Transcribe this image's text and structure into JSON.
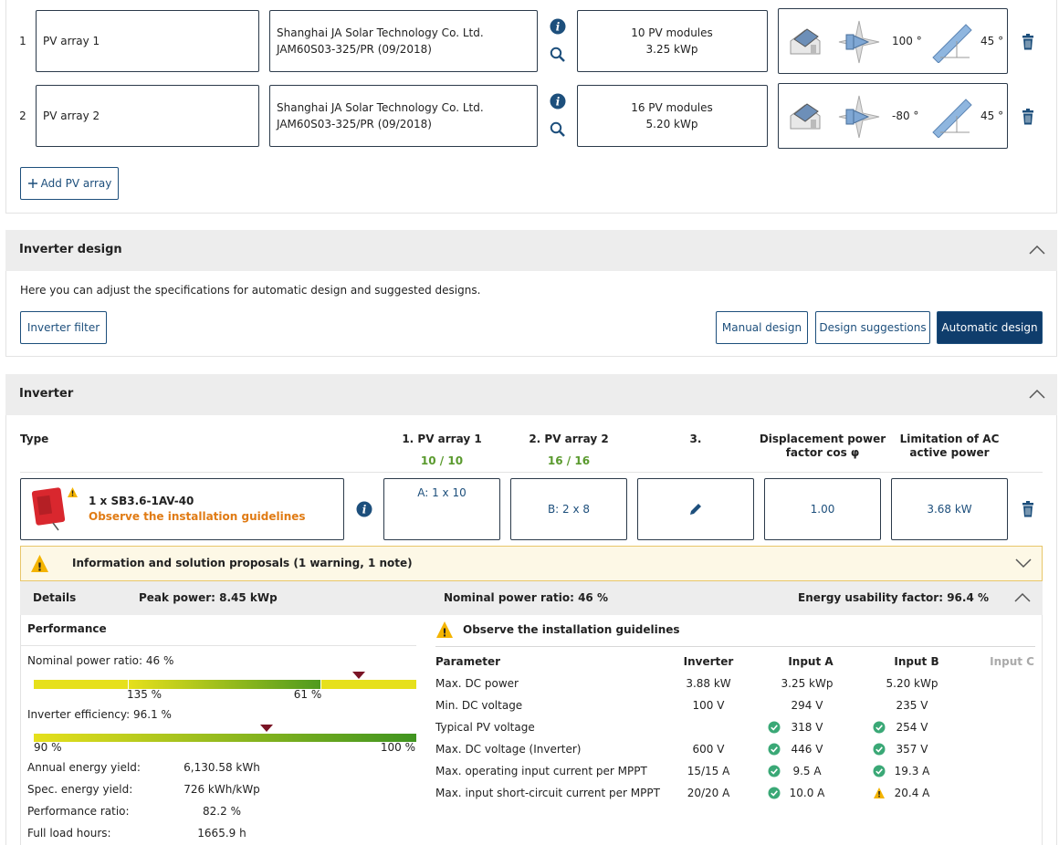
{
  "pv_arrays": [
    {
      "index": "1",
      "name": "PV array 1",
      "manufacturer": "Shanghai JA Solar Technology Co. Ltd.",
      "model": "JAM60S03-325/PR (09/2018)",
      "modules": "10 PV modules",
      "power": "3.25 kWp",
      "azimuth": "100 °",
      "tilt": "45 °"
    },
    {
      "index": "2",
      "name": "PV array 2",
      "manufacturer": "Shanghai JA Solar Technology Co. Ltd.",
      "model": "JAM60S03-325/PR (09/2018)",
      "modules": "16 PV modules",
      "power": "5.20 kWp",
      "azimuth": "-80 °",
      "tilt": "45 °"
    }
  ],
  "add_pv_array": "Add PV array",
  "inverter_design": {
    "title": "Inverter design",
    "description": "Here you can adjust the specifications for automatic design and suggested designs.",
    "filter_button": "Inverter filter",
    "buttons": [
      "Manual design",
      "Design suggestions",
      "Automatic design"
    ]
  },
  "inverter": {
    "title": "Inverter",
    "type_header": "Type",
    "columns": [
      {
        "label": "1. PV array 1",
        "sub": "10 / 10"
      },
      {
        "label": "2. PV array 2",
        "sub": "16 / 16"
      },
      {
        "label": "3."
      }
    ],
    "cos_header": [
      "Displacement power",
      "factor cos φ"
    ],
    "limit_header": [
      "Limitation of AC",
      "active power"
    ],
    "device": "1 x SB3.6-1AV-40",
    "device_warning": "Observe the installation guidelines",
    "inputs": [
      "A: 1 x 10",
      "B: 2 x 8"
    ],
    "cos_phi": "1.00",
    "ac_limit": "3.68 kW"
  },
  "info_bar": "Information and solution proposals (1 warning, 1 note)",
  "details": {
    "label": "Details",
    "peak_power": "Peak power: 8.45 kWp",
    "nominal_ratio": "Nominal power ratio: 46 %",
    "energy_factor": "Energy usability factor: 96.4 %"
  },
  "performance": {
    "title": "Performance",
    "nominal_label": "Nominal power ratio: 46 %",
    "nominal_marks": [
      "135 %",
      "61 %"
    ],
    "efficiency_label": "Inverter efficiency: 96.1 %",
    "efficiency_marks": [
      "90 %",
      "100 %"
    ],
    "stats": [
      [
        "Annual energy yield:",
        "6,130.58 kWh"
      ],
      [
        "Spec. energy yield:",
        "726 kWh/kWp"
      ],
      [
        "Performance ratio:",
        "82.2 %"
      ],
      [
        "Full load hours:",
        "1665.9 h"
      ]
    ]
  },
  "guidelines": {
    "title": "Observe the installation guidelines",
    "header": [
      "Parameter",
      "Inverter",
      "Input A",
      "Input B",
      "Input C"
    ],
    "rows": [
      {
        "cells": [
          "Max. DC power",
          "3.88 kW",
          "3.25 kWp",
          "5.20 kWp"
        ],
        "status": null
      },
      {
        "cells": [
          "Min. DC voltage",
          "100 V",
          "294 V",
          "235 V"
        ],
        "status": null
      },
      {
        "cells": [
          "Typical PV voltage",
          null,
          "318 V",
          "254 V"
        ],
        "status": [
          "ok",
          "ok"
        ]
      },
      {
        "cells": [
          "Max. DC voltage (Inverter)",
          "600 V",
          "446 V",
          "357 V"
        ],
        "status": [
          "ok",
          "ok"
        ]
      },
      {
        "cells": [
          "Max. operating input current per MPPT",
          "15/15 A",
          "9.5 A",
          "19.3 A"
        ],
        "status": [
          "ok",
          "ok"
        ]
      },
      {
        "cells": [
          "Max. input short-circuit current per MPPT",
          "20/20 A",
          "10.0 A",
          "20.4 A"
        ],
        "status": [
          "ok",
          "warning"
        ]
      }
    ]
  }
}
